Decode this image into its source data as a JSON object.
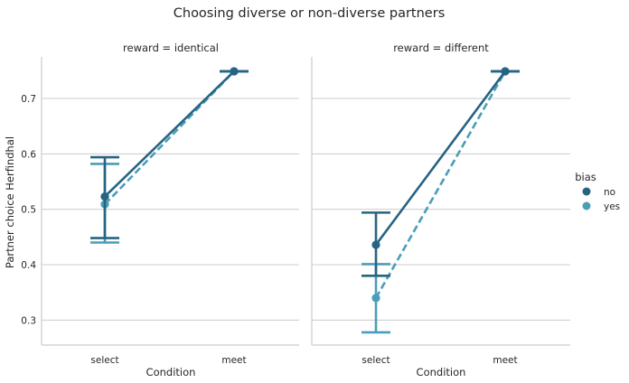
{
  "colors": {
    "no": "#276482",
    "yes": "#4a9eb8"
  },
  "chart_data": {
    "type": "line",
    "title": "Choosing diverse or non-diverse partners",
    "ylabel": "Partner choice Herfindhal",
    "xlabel": "Condition",
    "categories": [
      "select",
      "meet"
    ],
    "ylim": [
      0.255,
      0.775
    ],
    "yticks": [
      "0.3",
      "0.4",
      "0.5",
      "0.6",
      "0.7"
    ],
    "grid": true,
    "legend": {
      "title": "bias",
      "entries": [
        "no",
        "yes"
      ],
      "placement": "right"
    },
    "panels": [
      {
        "title": "reward = identical",
        "series": [
          {
            "name": "no",
            "values": [
              0.523,
              0.749
            ],
            "err_low": [
              0.448,
              0.749
            ],
            "err_high": [
              0.594,
              0.749
            ],
            "style": "solid"
          },
          {
            "name": "yes",
            "values": [
              0.509,
              0.749
            ],
            "err_low": [
              0.44,
              0.749
            ],
            "err_high": [
              0.582,
              0.749
            ],
            "style": "dashed"
          }
        ]
      },
      {
        "title": "reward = different",
        "series": [
          {
            "name": "no",
            "values": [
              0.436,
              0.749
            ],
            "err_low": [
              0.38,
              0.749
            ],
            "err_high": [
              0.494,
              0.749
            ],
            "style": "solid"
          },
          {
            "name": "yes",
            "values": [
              0.34,
              0.749
            ],
            "err_low": [
              0.278,
              0.749
            ],
            "err_high": [
              0.401,
              0.749
            ],
            "style": "dashed"
          }
        ]
      }
    ]
  }
}
